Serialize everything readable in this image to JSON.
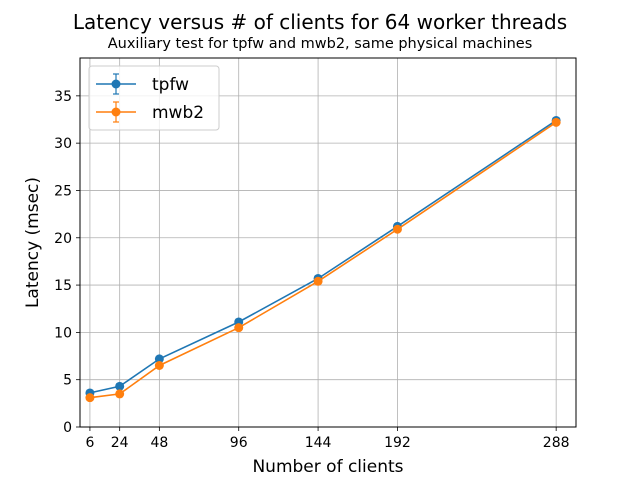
{
  "chart_data": {
    "type": "line",
    "title": "Latency versus # of clients for 64 worker threads",
    "subtitle": "Auxiliary test for tpfw and mwb2, same physical machines",
    "xlabel": "Number of clients",
    "ylabel": "Latency (msec)",
    "xlim": [
      0,
      300
    ],
    "ylim": [
      0,
      39
    ],
    "xticks": [
      6,
      24,
      48,
      96,
      144,
      192,
      288
    ],
    "yticks": [
      0,
      5,
      10,
      15,
      20,
      25,
      30,
      35
    ],
    "grid": true,
    "legend_position": "top-left",
    "series": [
      {
        "name": "tpfw",
        "color": "#1f77b4",
        "x": [
          6,
          24,
          48,
          96,
          144,
          192,
          288
        ],
        "y": [
          3.6,
          4.3,
          7.2,
          11.1,
          15.7,
          21.2,
          32.4
        ],
        "yerr": [
          0.1,
          0.1,
          0.1,
          0.1,
          0.1,
          0.1,
          0.1
        ]
      },
      {
        "name": "mwb2",
        "color": "#ff7f0e",
        "x": [
          6,
          24,
          48,
          96,
          144,
          192,
          288
        ],
        "y": [
          3.1,
          3.5,
          6.5,
          10.5,
          15.4,
          20.9,
          32.2
        ],
        "yerr": [
          0.1,
          0.1,
          0.1,
          0.1,
          0.1,
          0.1,
          0.1
        ]
      }
    ]
  }
}
